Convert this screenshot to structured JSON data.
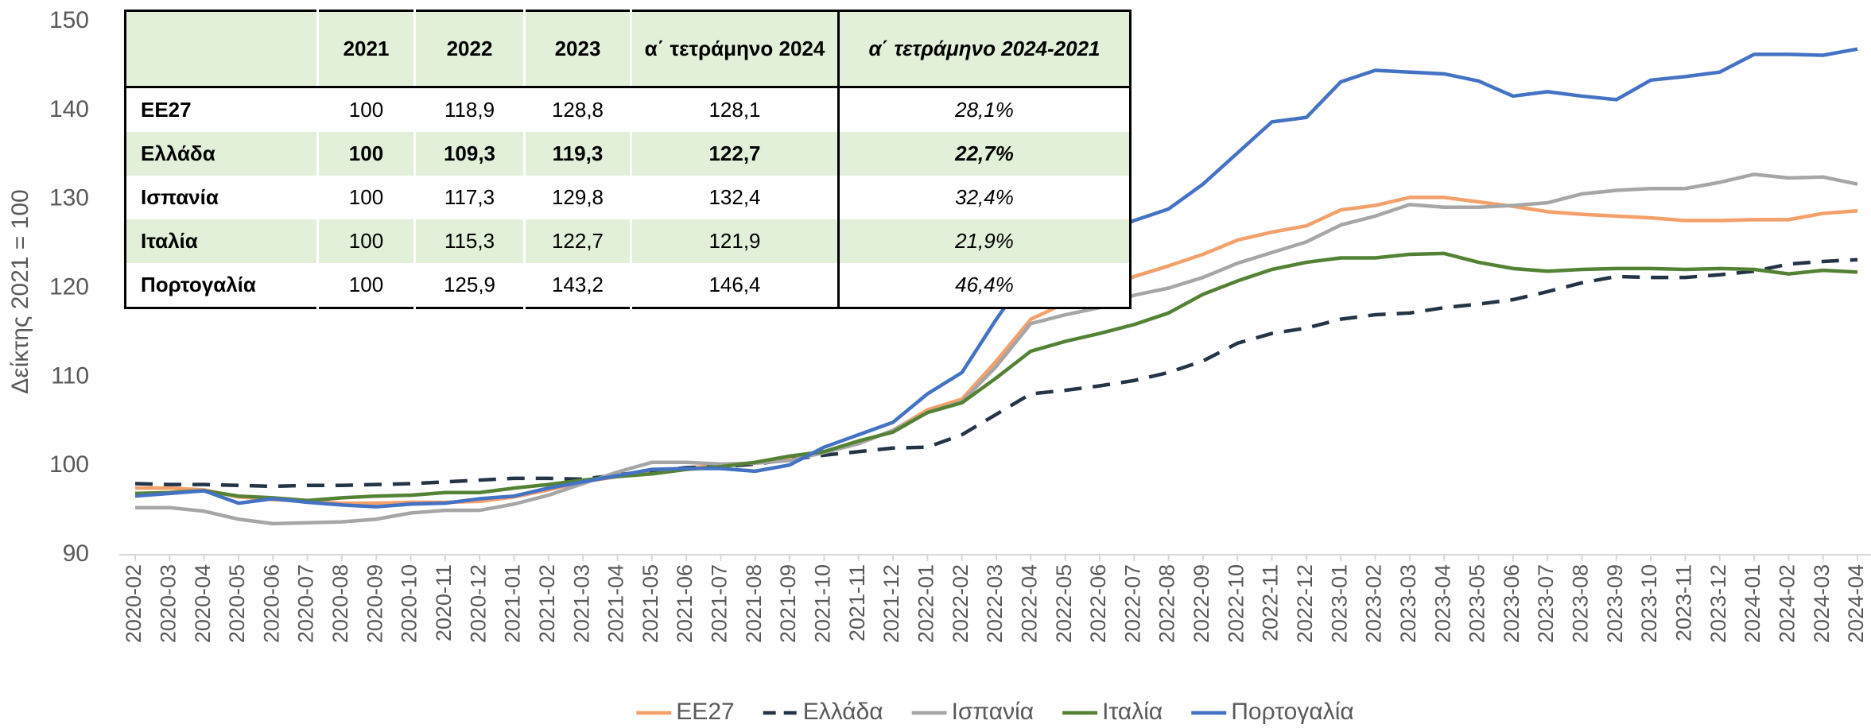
{
  "chart_data": {
    "type": "line",
    "y_label": "Δείκτης 2021 = 100",
    "ylim": [
      90,
      150
    ],
    "yticks": [
      90,
      100,
      110,
      120,
      130,
      140,
      150
    ],
    "grid": false,
    "legend": "bottom",
    "categories": [
      "2020-02",
      "2020-03",
      "2020-04",
      "2020-05",
      "2020-06",
      "2020-07",
      "2020-08",
      "2020-09",
      "2020-10",
      "2020-11",
      "2020-12",
      "2021-01",
      "2021-02",
      "2021-03",
      "2021-04",
      "2021-05",
      "2021-06",
      "2021-07",
      "2021-08",
      "2021-09",
      "2021-10",
      "2021-11",
      "2021-12",
      "2022-01",
      "2022-02",
      "2022-03",
      "2022-04",
      "2022-05",
      "2022-06",
      "2022-07",
      "2022-08",
      "2022-09",
      "2022-10",
      "2022-11",
      "2022-12",
      "2023-01",
      "2023-02",
      "2023-03",
      "2023-04",
      "2023-05",
      "2023-06",
      "2023-07",
      "2023-08",
      "2023-09",
      "2023-10",
      "2023-11",
      "2023-12",
      "2024-01",
      "2024-02",
      "2024-03",
      "2024-04"
    ],
    "series": [
      {
        "name": "ΕΕ27",
        "color": "#f4a06a",
        "dash": false,
        "values": [
          97.5,
          97.5,
          97.3,
          96.5,
          96.2,
          96,
          95.8,
          95.8,
          95.9,
          95.9,
          96,
          96.5,
          97.3,
          98.2,
          98.8,
          99.3,
          99.8,
          100,
          100.3,
          100.8,
          101.5,
          102.5,
          104,
          106.3,
          107.5,
          111.8,
          116.5,
          118.3,
          119.5,
          121.3,
          122.5,
          123.8,
          125.4,
          126.3,
          127,
          128.8,
          129.3,
          130.2,
          130.2,
          129.7,
          129.2,
          128.6,
          128.3,
          128.1,
          127.9,
          127.6,
          127.6,
          127.7,
          127.7,
          128.4,
          128.7
        ]
      },
      {
        "name": "Ελλάδα",
        "color": "#243447",
        "dash": true,
        "values": [
          98,
          97.9,
          97.9,
          97.8,
          97.7,
          97.8,
          97.8,
          97.9,
          98,
          98.2,
          98.4,
          98.6,
          98.6,
          98.5,
          99,
          99.4,
          99.8,
          99.9,
          100.2,
          100.7,
          101.2,
          101.6,
          102,
          102.1,
          103.5,
          105.8,
          108.1,
          108.5,
          109,
          109.6,
          110.5,
          111.8,
          113.8,
          114.9,
          115.5,
          116.5,
          117,
          117.2,
          117.8,
          118.2,
          118.7,
          119.6,
          120.6,
          121.3,
          121.2,
          121.2,
          121.5,
          121.9,
          122.7,
          123,
          123.2
        ]
      },
      {
        "name": "Ισπανία",
        "color": "#a6a6a6",
        "dash": false,
        "values": [
          95.3,
          95.3,
          94.9,
          94,
          93.5,
          93.6,
          93.7,
          94,
          94.7,
          95,
          95,
          95.7,
          96.7,
          98,
          99.3,
          100.4,
          100.4,
          100.2,
          100.3,
          100.6,
          101.5,
          102.5,
          104,
          106,
          107.2,
          111.2,
          116,
          117,
          117.8,
          119.2,
          120,
          121.2,
          122.8,
          124,
          125.2,
          127.1,
          128.1,
          129.4,
          129.1,
          129.1,
          129.3,
          129.6,
          130.6,
          131,
          131.2,
          131.2,
          131.9,
          132.8,
          132.4,
          132.5,
          131.7
        ]
      },
      {
        "name": "Ιταλία",
        "color": "#548235",
        "dash": false,
        "values": [
          96.9,
          97,
          97.2,
          96.6,
          96.4,
          96.1,
          96.4,
          96.6,
          96.7,
          97,
          97,
          97.5,
          97.9,
          98.4,
          98.8,
          99.1,
          99.6,
          99.9,
          100.4,
          101.1,
          101.6,
          102.8,
          103.8,
          106,
          107.1,
          109.9,
          112.9,
          114,
          114.9,
          115.9,
          117.2,
          119.3,
          120.8,
          122.1,
          122.9,
          123.4,
          123.4,
          123.8,
          123.9,
          122.9,
          122.2,
          121.9,
          122.1,
          122.2,
          122.2,
          122.1,
          122.2,
          122.1,
          121.6,
          122,
          121.8
        ]
      },
      {
        "name": "Πορτογαλία",
        "color": "#4472c4",
        "dash": false,
        "values": [
          96.6,
          96.9,
          97.2,
          95.8,
          96.3,
          95.9,
          95.6,
          95.4,
          95.7,
          95.8,
          96.3,
          96.6,
          97.5,
          98.2,
          98.9,
          99.6,
          99.7,
          99.7,
          99.4,
          100.1,
          102.1,
          103.5,
          104.9,
          108.1,
          110.5,
          116.5,
          122,
          124.7,
          126,
          127.6,
          128.9,
          131.7,
          135.2,
          138.7,
          139.2,
          143.2,
          144.5,
          144.3,
          144.1,
          143.3,
          141.6,
          142.1,
          141.6,
          141.2,
          143.4,
          143.8,
          144.3,
          146.3,
          146.3,
          146.2,
          146.9
        ]
      }
    ]
  },
  "table": {
    "header": [
      "2021",
      "2022",
      "2023",
      "α΄ τετράμηνο 2024",
      "α΄ τετράμηνο 2024-2021"
    ],
    "rows": [
      [
        "ΕΕ27",
        "100",
        "118,9",
        "128,8",
        "128,1",
        "28,1%"
      ],
      [
        "Ελλάδα",
        "100",
        "109,3",
        "119,3",
        "122,7",
        "22,7%"
      ],
      [
        "Ισπανία",
        "100",
        "117,3",
        "129,8",
        "132,4",
        "32,4%"
      ],
      [
        "Ιταλία",
        "100",
        "115,3",
        "122,7",
        "121,9",
        "21,9%"
      ],
      [
        "Πορτογαλία",
        "100",
        "125,9",
        "143,2",
        "146,4",
        "46,4%"
      ]
    ]
  }
}
